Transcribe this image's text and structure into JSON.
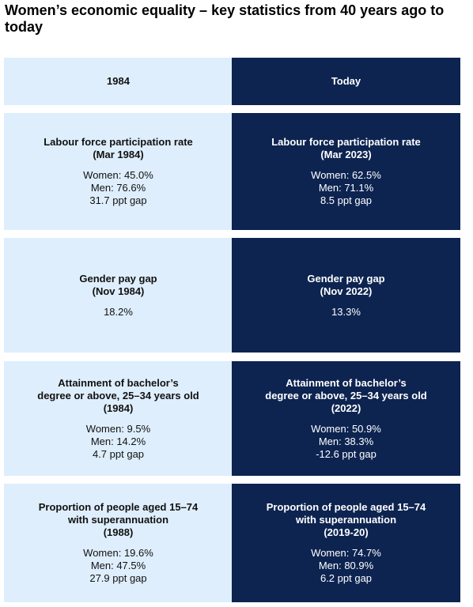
{
  "title": "Women’s economic equality – key statistics from 40 years ago to today",
  "columns": {
    "left": "1984",
    "right": "Today"
  },
  "rows": [
    {
      "left": {
        "metric": "Labour force participation rate",
        "period": "(Mar 1984)",
        "stats": [
          "Women: 45.0%",
          "Men: 76.6%",
          "31.7 ppt gap"
        ]
      },
      "right": {
        "metric": "Labour force participation rate",
        "period": "(Mar 2023)",
        "stats": [
          "Women: 62.5%",
          "Men: 71.1%",
          "8.5 ppt gap"
        ]
      }
    },
    {
      "left": {
        "metric": "Gender pay gap",
        "period": "(Nov 1984)",
        "stats": [
          "18.2%"
        ]
      },
      "right": {
        "metric": "Gender pay gap",
        "period": "(Nov 2022)",
        "stats": [
          "13.3%"
        ]
      }
    },
    {
      "left": {
        "metric": [
          "Attainment of bachelor’s",
          "degree or above, 25–34 years old"
        ],
        "period": "(1984)",
        "stats": [
          "Women: 9.5%",
          "Men: 14.2%",
          "4.7 ppt gap"
        ]
      },
      "right": {
        "metric": [
          "Attainment of bachelor’s",
          "degree or above, 25–34 years old"
        ],
        "period": "(2022)",
        "stats": [
          "Women: 50.9%",
          "Men: 38.3%",
          "-12.6 ppt gap"
        ]
      }
    },
    {
      "left": {
        "metric": [
          "Proportion of people aged 15–74",
          "with superannuation"
        ],
        "period": "(1988)",
        "stats": [
          "Women: 19.6%",
          "Men: 47.5%",
          "27.9 ppt gap"
        ]
      },
      "right": {
        "metric": [
          "Proportion of people aged 15–74",
          "with superannuation"
        ],
        "period": "(2019-20)",
        "stats": [
          "Women: 74.7%",
          "Men: 80.9%",
          "6.2 ppt gap"
        ]
      }
    }
  ],
  "colors": {
    "left_bg": "#deeefc",
    "right_bg": "#0d2451",
    "right_text": "#ffffff"
  }
}
